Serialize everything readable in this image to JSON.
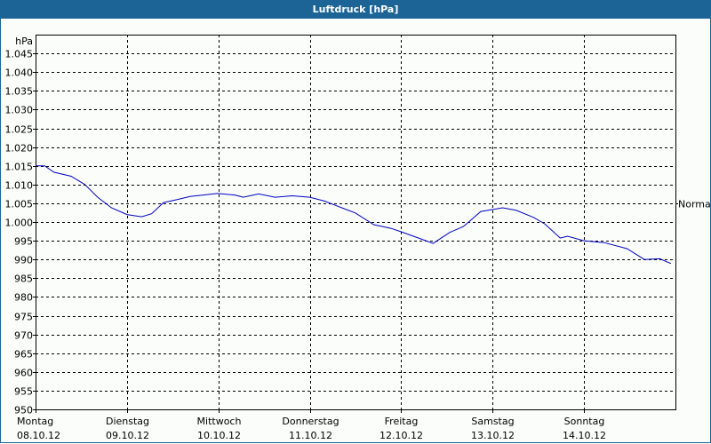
{
  "window": {
    "title": "Luftdruck [hPa]"
  },
  "chart_data": {
    "type": "line",
    "title": "Luftdruck [hPa]",
    "ylabel": "hPa",
    "xlabel": "",
    "ylim": [
      950,
      1050
    ],
    "grid": true,
    "yticks": [
      "950",
      "955",
      "960",
      "965",
      "970",
      "975",
      "980",
      "985",
      "990",
      "995",
      "1.000",
      "1.005",
      "1.010",
      "1.015",
      "1.020",
      "1.025",
      "1.030",
      "1.035",
      "1.040",
      "1.045"
    ],
    "categories": [
      {
        "day": "Montag",
        "date": "08.10.12"
      },
      {
        "day": "Dienstag",
        "date": "09.10.12"
      },
      {
        "day": "Mittwoch",
        "date": "10.10.12"
      },
      {
        "day": "Donnerstag",
        "date": "11.10.12"
      },
      {
        "day": "Freitag",
        "date": "12.10.12"
      },
      {
        "day": "Samstag",
        "date": "13.10.12"
      },
      {
        "day": "Sonntag",
        "date": "14.10.12"
      }
    ],
    "reference_line": {
      "label": "Normal",
      "value": 1005
    },
    "series": [
      {
        "name": "Luftdruck",
        "color": "#0000c0",
        "x_day_fraction": [
          0.0,
          0.1,
          0.2,
          0.39,
          0.54,
          0.68,
          0.83,
          1.0,
          1.16,
          1.27,
          1.4,
          1.55,
          1.69,
          1.99,
          2.18,
          2.27,
          2.44,
          2.62,
          2.81,
          3.0,
          3.16,
          3.35,
          3.5,
          3.7,
          3.89,
          4.0,
          4.19,
          4.35,
          4.53,
          4.68,
          4.87,
          5.11,
          5.26,
          5.45,
          5.57,
          5.74,
          5.82,
          6.0,
          6.22,
          6.47,
          6.66,
          6.83,
          6.95
        ],
        "values": [
          1015,
          1015,
          1013.3,
          1012.2,
          1010,
          1006.6,
          1003.8,
          1002,
          1001.4,
          1002.2,
          1005.2,
          1006,
          1006.8,
          1007.6,
          1007.2,
          1006.6,
          1007.5,
          1006.6,
          1007,
          1006.6,
          1005.6,
          1003.8,
          1002.4,
          999.3,
          998.3,
          997.4,
          995.7,
          994.3,
          997.2,
          998.8,
          1002.8,
          1003.8,
          1003.1,
          1001.2,
          999.5,
          995.7,
          996.2,
          995,
          994.5,
          992.9,
          990,
          990.2,
          988.9
        ]
      }
    ]
  }
}
